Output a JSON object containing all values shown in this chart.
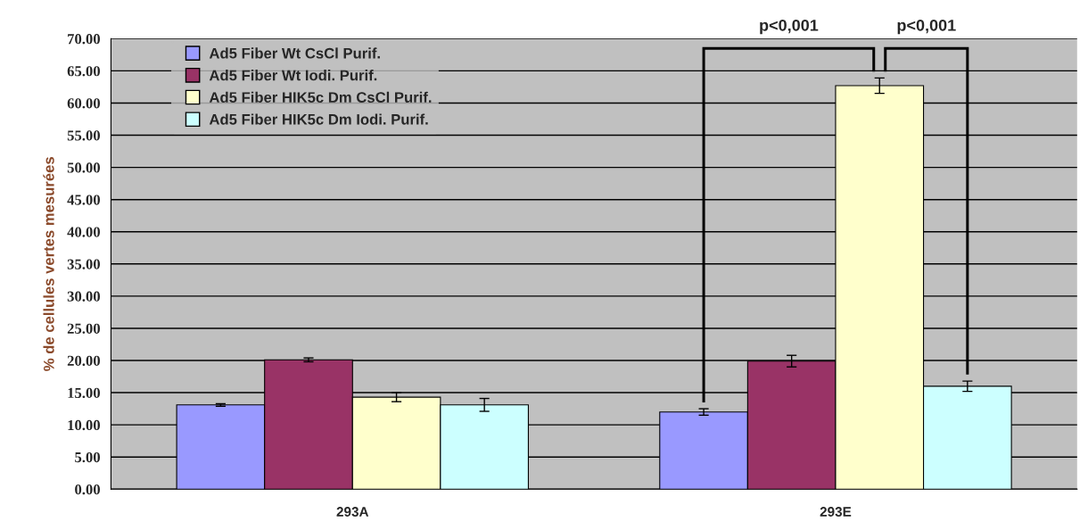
{
  "chart_data": {
    "type": "bar",
    "ylabel": "% de cellules vertes mesurées",
    "categories": [
      "293A",
      "293E"
    ],
    "series": [
      {
        "name": "Ad5 Fiber Wt CsCl Purif.",
        "color": "#9999ff",
        "values": [
          13.1,
          12.0
        ],
        "errors": [
          0.2,
          0.5
        ]
      },
      {
        "name": "Ad5 Fiber Wt Iodi. Purif.",
        "color": "#993366",
        "values": [
          20.1,
          19.9
        ],
        "errors": [
          0.3,
          0.9
        ]
      },
      {
        "name": "Ad5 Fiber HIK5c Dm CsCl Purif.",
        "color": "#ffffcc",
        "values": [
          14.3,
          62.7
        ],
        "errors": [
          0.7,
          1.2
        ]
      },
      {
        "name": "Ad5 Fiber HIK5c Dm Iodi. Purif.",
        "color": "#ccffff",
        "values": [
          13.1,
          16.0
        ],
        "errors": [
          1.0,
          0.8
        ]
      }
    ],
    "ylim": [
      0,
      70
    ],
    "yticks": [
      {
        "value": 0,
        "label": "0.00"
      },
      {
        "value": 5,
        "label": "5.00"
      },
      {
        "value": 10,
        "label": "10.00"
      },
      {
        "value": 15,
        "label": "15.00"
      },
      {
        "value": 20,
        "label": "20.00"
      },
      {
        "value": 25,
        "label": "25.00"
      },
      {
        "value": 30,
        "label": "30.00"
      },
      {
        "value": 35,
        "label": "35.00"
      },
      {
        "value": 40,
        "label": "40.00"
      },
      {
        "value": 45,
        "label": "45.00"
      },
      {
        "value": 50,
        "label": "50.00"
      },
      {
        "value": 55,
        "label": "55.00"
      },
      {
        "value": 60,
        "label": "60.00"
      },
      {
        "value": 65,
        "label": "65.00"
      },
      {
        "value": 70,
        "label": "70.00"
      }
    ],
    "grid": "y",
    "legend": "top left",
    "annotations": [
      "p<0,001",
      "p<0,001"
    ]
  }
}
